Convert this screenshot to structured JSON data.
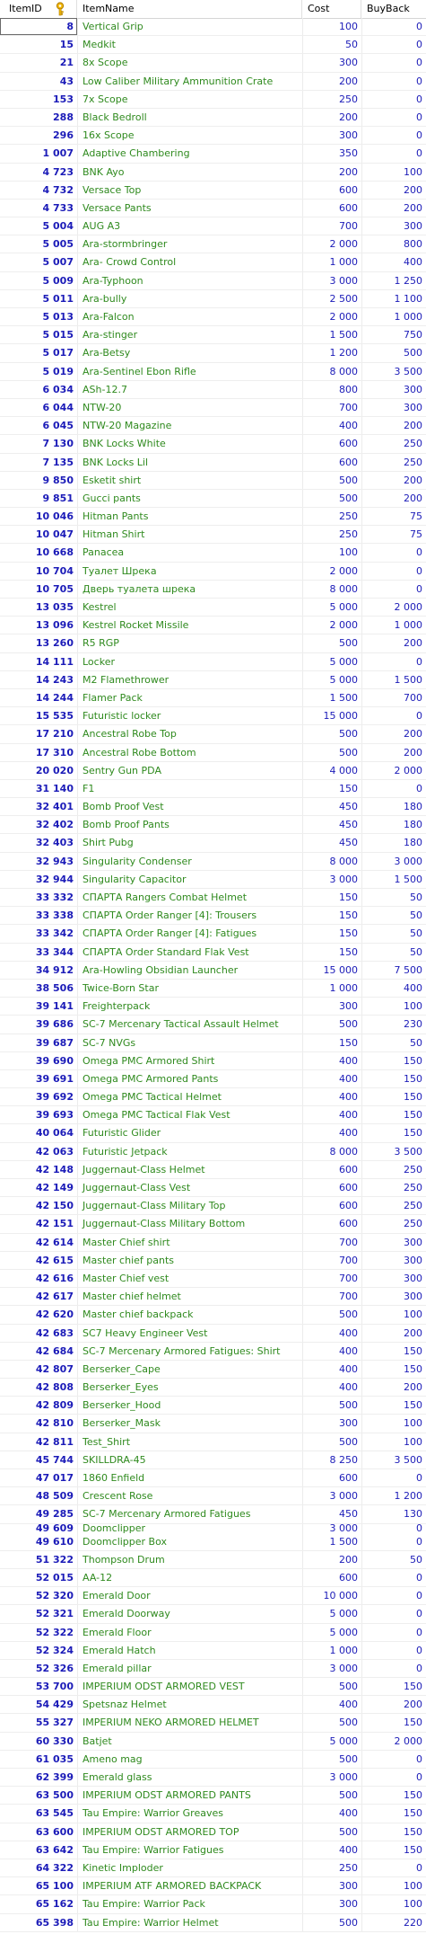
{
  "columns": {
    "id": "ItemID",
    "name": "ItemName",
    "cost": "Cost",
    "buyback": "BuyBack"
  },
  "rows": [
    [
      "8",
      "Vertical Grip",
      "100",
      "0"
    ],
    [
      "15",
      "Medkit",
      "50",
      "0"
    ],
    [
      "21",
      "8x Scope",
      "300",
      "0"
    ],
    [
      "43",
      "Low Caliber Military Ammunition Crate",
      "200",
      "0"
    ],
    [
      "153",
      "7x Scope",
      "250",
      "0"
    ],
    [
      "288",
      "Black Bedroll",
      "200",
      "0"
    ],
    [
      "296",
      "16x Scope",
      "300",
      "0"
    ],
    [
      "1 007",
      "Adaptive Chambering",
      "350",
      "0"
    ],
    [
      "4 723",
      "BNK Ayo",
      "200",
      "100"
    ],
    [
      "4 732",
      "Versace Top",
      "600",
      "200"
    ],
    [
      "4 733",
      "Versace Pants",
      "600",
      "200"
    ],
    [
      "5 004",
      "AUG A3",
      "700",
      "300"
    ],
    [
      "5 005",
      "Ara-stormbringer",
      "2 000",
      "800"
    ],
    [
      "5 007",
      "Ara- Crowd Control",
      "1 000",
      "400"
    ],
    [
      "5 009",
      "Ara-Typhoon",
      "3 000",
      "1 250"
    ],
    [
      "5 011",
      "Ara-bully",
      "2 500",
      "1 100"
    ],
    [
      "5 013",
      "Ara-Falcon",
      "2 000",
      "1 000"
    ],
    [
      "5 015",
      "Ara-stinger",
      "1 500",
      "750"
    ],
    [
      "5 017",
      "Ara-Betsy",
      "1 200",
      "500"
    ],
    [
      "5 019",
      "Ara-Sentinel Ebon Rifle",
      "8 000",
      "3 500"
    ],
    [
      "6 034",
      "ASh-12.7",
      "800",
      "300"
    ],
    [
      "6 044",
      "NTW-20",
      "700",
      "300"
    ],
    [
      "6 045",
      "NTW-20 Magazine",
      "400",
      "200"
    ],
    [
      "7 130",
      "BNK Locks White",
      "600",
      "250"
    ],
    [
      "7 135",
      "BNK Locks Lil",
      "600",
      "250"
    ],
    [
      "9 850",
      "Esketit shirt",
      "500",
      "200"
    ],
    [
      "9 851",
      "Gucci pants",
      "500",
      "200"
    ],
    [
      "10 046",
      "Hitman Pants",
      "250",
      "75"
    ],
    [
      "10 047",
      "Hitman Shirt",
      "250",
      "75"
    ],
    [
      "10 668",
      "Panacea",
      "100",
      "0"
    ],
    [
      "10 704",
      "Туалет Шрека",
      "2 000",
      "0"
    ],
    [
      "10 705",
      "Дверь туалета шрека",
      "8 000",
      "0"
    ],
    [
      "13 035",
      "Kestrel",
      "5 000",
      "2 000"
    ],
    [
      "13 096",
      "Kestrel Rocket Missile",
      "2 000",
      "1 000"
    ],
    [
      "13 260",
      "R5 RGP",
      "500",
      "200"
    ],
    [
      "14 111",
      "Locker",
      "5 000",
      "0"
    ],
    [
      "14 243",
      "M2 Flamethrower",
      "5 000",
      "1 500"
    ],
    [
      "14 244",
      "Flamer Pack",
      "1 500",
      "700"
    ],
    [
      "15 535",
      "Futuristic locker",
      "15 000",
      "0"
    ],
    [
      "17 210",
      "Ancestral Robe Top",
      "500",
      "200"
    ],
    [
      "17 310",
      "Ancestral Robe Bottom",
      "500",
      "200"
    ],
    [
      "20 020",
      "Sentry Gun PDA",
      "4 000",
      "2 000"
    ],
    [
      "31 140",
      "F1",
      "150",
      "0"
    ],
    [
      "32 401",
      "Bomb Proof Vest",
      "450",
      "180"
    ],
    [
      "32 402",
      "Bomb Proof Pants",
      "450",
      "180"
    ],
    [
      "32 403",
      "Shirt Pubg",
      "450",
      "180"
    ],
    [
      "32 943",
      "Singularity Condenser",
      "8 000",
      "3 000"
    ],
    [
      "32 944",
      "Singularity Capacitor",
      "3 000",
      "1 500"
    ],
    [
      "33 332",
      "СПАРТА Rangers Combat Helmet",
      "150",
      "50"
    ],
    [
      "33 338",
      "СПАРТА Order Ranger [4]: Trousers",
      "150",
      "50"
    ],
    [
      "33 342",
      "СПАРТА Order Ranger [4]: Fatigues",
      "150",
      "50"
    ],
    [
      "33 344",
      "СПАРТА Order Standard Flak Vest",
      "150",
      "50"
    ],
    [
      "34 912",
      "Ara-Howling Obsidian Launcher",
      "15 000",
      "7 500"
    ],
    [
      "38 506",
      "Twice-Born Star",
      "1 000",
      "400"
    ],
    [
      "39 141",
      "Freighterpack",
      "300",
      "100"
    ],
    [
      "39 686",
      "SC-7 Mercenary Tactical Assault Helmet",
      "500",
      "230"
    ],
    [
      "39 687",
      "SC-7 NVGs",
      "150",
      "50"
    ],
    [
      "39 690",
      "Omega PMC Armored Shirt",
      "400",
      "150"
    ],
    [
      "39 691",
      "Omega PMC Armored Pants",
      "400",
      "150"
    ],
    [
      "39 692",
      "Omega PMC Tactical Helmet",
      "400",
      "150"
    ],
    [
      "39 693",
      "Omega PMC Tactical Flak Vest",
      "400",
      "150"
    ],
    [
      "40 064",
      "Futuristic Glider",
      "400",
      "150"
    ],
    [
      "42 063",
      "Futuristic Jetpack",
      "8 000",
      "3 500"
    ],
    [
      "42 148",
      "Juggernaut-Class Helmet",
      "600",
      "250"
    ],
    [
      "42 149",
      "Juggernaut-Class Vest",
      "600",
      "250"
    ],
    [
      "42 150",
      "Juggernaut-Class Military Top",
      "600",
      "250"
    ],
    [
      "42 151",
      "Juggernaut-Class Military Bottom",
      "600",
      "250"
    ],
    [
      "42 614",
      "Master Chief shirt",
      "700",
      "300"
    ],
    [
      "42 615",
      "Master chief pants",
      "700",
      "300"
    ],
    [
      "42 616",
      "Master Chief vest",
      "700",
      "300"
    ],
    [
      "42 617",
      "Master chief helmet",
      "700",
      "300"
    ],
    [
      "42 620",
      "Master chief backpack",
      "500",
      "100"
    ],
    [
      "42 683",
      "SC7 Heavy Engineer Vest",
      "400",
      "200"
    ],
    [
      "42 684",
      "SC-7 Mercenary Armored Fatigues: Shirt",
      "400",
      "150"
    ],
    [
      "42 807",
      "Berserker_Cape",
      "400",
      "150"
    ],
    [
      "42 808",
      "Berserker_Eyes",
      "400",
      "200"
    ],
    [
      "42 809",
      "Berserker_Hood",
      "500",
      "150"
    ],
    [
      "42 810",
      "Berserker_Mask",
      "300",
      "100"
    ],
    [
      "42 811",
      "Test_Shirt",
      "500",
      "100"
    ],
    [
      "45 744",
      "SKILLDRA-45",
      "8 250",
      "3 500"
    ],
    [
      "47 017",
      "1860 Enfield",
      "600",
      "0"
    ],
    [
      "48 509",
      "Crescent Rose",
      "3 000",
      "1 200"
    ],
    [
      "49 285",
      "SC-7 Mercenary Armored Fatigues",
      "450",
      "130"
    ],
    [
      "49 609",
      "Doomclipper",
      "3 000",
      "0"
    ],
    [
      "49 610",
      "Doomclipper Box",
      "1 500",
      "0"
    ],
    [
      "51 322",
      "Thompson Drum",
      "200",
      "50"
    ],
    [
      "52 015",
      "AA-12",
      "600",
      "0"
    ],
    [
      "52 320",
      "Emerald Door",
      "10 000",
      "0"
    ],
    [
      "52 321",
      "Emerald Doorway",
      "5 000",
      "0"
    ],
    [
      "52 322",
      "Emerald Floor",
      "5 000",
      "0"
    ],
    [
      "52 324",
      "Emerald Hatch",
      "1 000",
      "0"
    ],
    [
      "52 326",
      "Emerald pillar",
      "3 000",
      "0"
    ],
    [
      "53 700",
      "IMPERIUM ODST ARMORED VEST",
      "500",
      "150"
    ],
    [
      "54 429",
      "Spetsnaz Helmet",
      "400",
      "200"
    ],
    [
      "55 327",
      "IMPERIUM NEKO ARMORED HELMET",
      "500",
      "150"
    ],
    [
      "60 330",
      "Batjet",
      "5 000",
      "2 000"
    ],
    [
      "61 035",
      "Ameno mag",
      "500",
      "0"
    ],
    [
      "62 399",
      "Emerald glass",
      "3 000",
      "0"
    ],
    [
      "63 500",
      "IMPERIUM ODST ARMORED PANTS",
      "500",
      "150"
    ],
    [
      "63 545",
      "Tau Empire: Warrior Greaves",
      "400",
      "150"
    ],
    [
      "63 600",
      "IMPERIUM ODST ARMORED TOP",
      "500",
      "150"
    ],
    [
      "63 642",
      "Tau Empire: Warrior Fatigues",
      "400",
      "150"
    ],
    [
      "64 322",
      "Kinetic Imploder",
      "250",
      "0"
    ],
    [
      "65 100",
      "IMPERIUM ATF ARMORED BACKPACK",
      "300",
      "100"
    ],
    [
      "65 162",
      "Tau Empire: Warrior Pack",
      "300",
      "100"
    ],
    [
      "65 398",
      "Tau Empire: Warrior Helmet",
      "500",
      "220"
    ]
  ],
  "partial_row_index": 83,
  "selected_row_index": 0
}
